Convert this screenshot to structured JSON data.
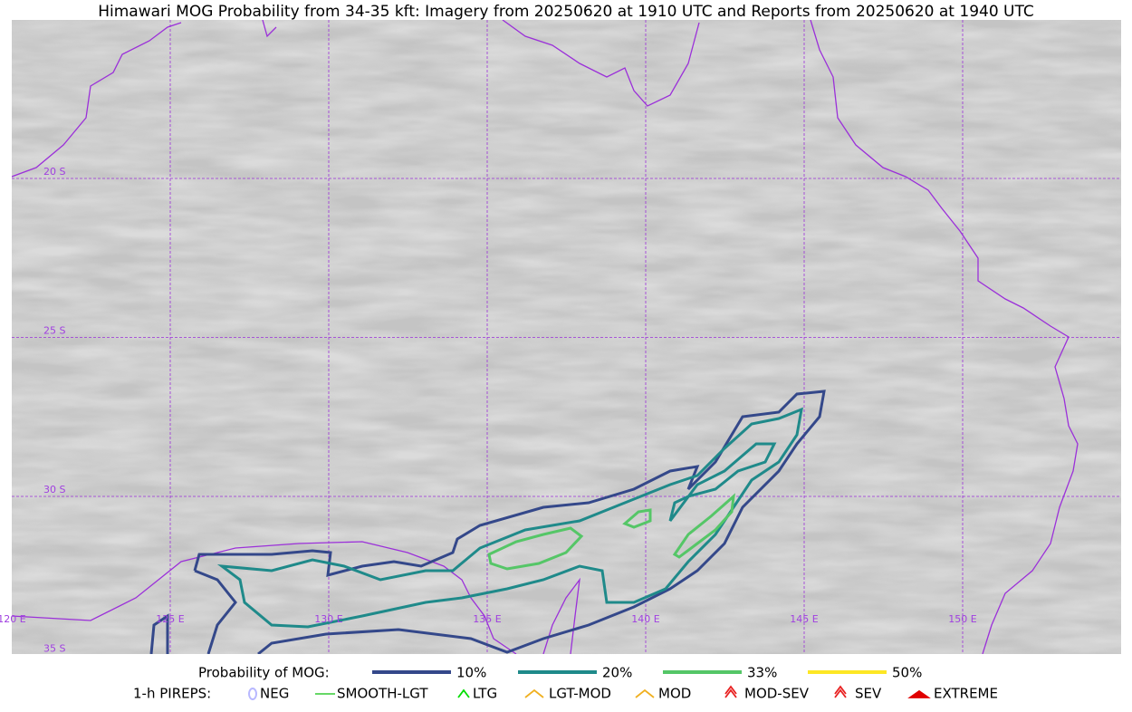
{
  "title": "Himawari MOG Probability from 34-35 kft: Imagery from 20250620 at 1910 UTC and Reports from 20250620 at 1940 UTC",
  "grid_labels": {
    "lat": [
      "20 S",
      "25 S",
      "30 S",
      "35 S"
    ],
    "lon": [
      "120 E",
      "125 E",
      "130 E",
      "135 E",
      "140 E",
      "145 E",
      "150 E"
    ]
  },
  "legend": {
    "probability": {
      "label": "Probability of MOG:",
      "items": [
        {
          "label": "10%",
          "color": "#34488a"
        },
        {
          "label": "20%",
          "color": "#1f8a8a"
        },
        {
          "label": "33%",
          "color": "#55c667"
        },
        {
          "label": "50%",
          "color": "#fde725"
        }
      ]
    },
    "pireps": {
      "label": "1-h PIREPS:",
      "items": [
        {
          "label": "NEG",
          "color": "#b8b8ff"
        },
        {
          "label": "SMOOTH-LGT",
          "color": "#33cc33"
        },
        {
          "label": "LTG",
          "color": "#00dd00"
        },
        {
          "label": "LGT-MOD",
          "color": "#f0b020"
        },
        {
          "label": "MOD",
          "color": "#f0b020"
        },
        {
          "label": "MOD-SEV",
          "color": "#e82020"
        },
        {
          "label": "SEV",
          "color": "#e82020"
        },
        {
          "label": "EXTREME",
          "color": "#e00000"
        }
      ]
    }
  }
}
